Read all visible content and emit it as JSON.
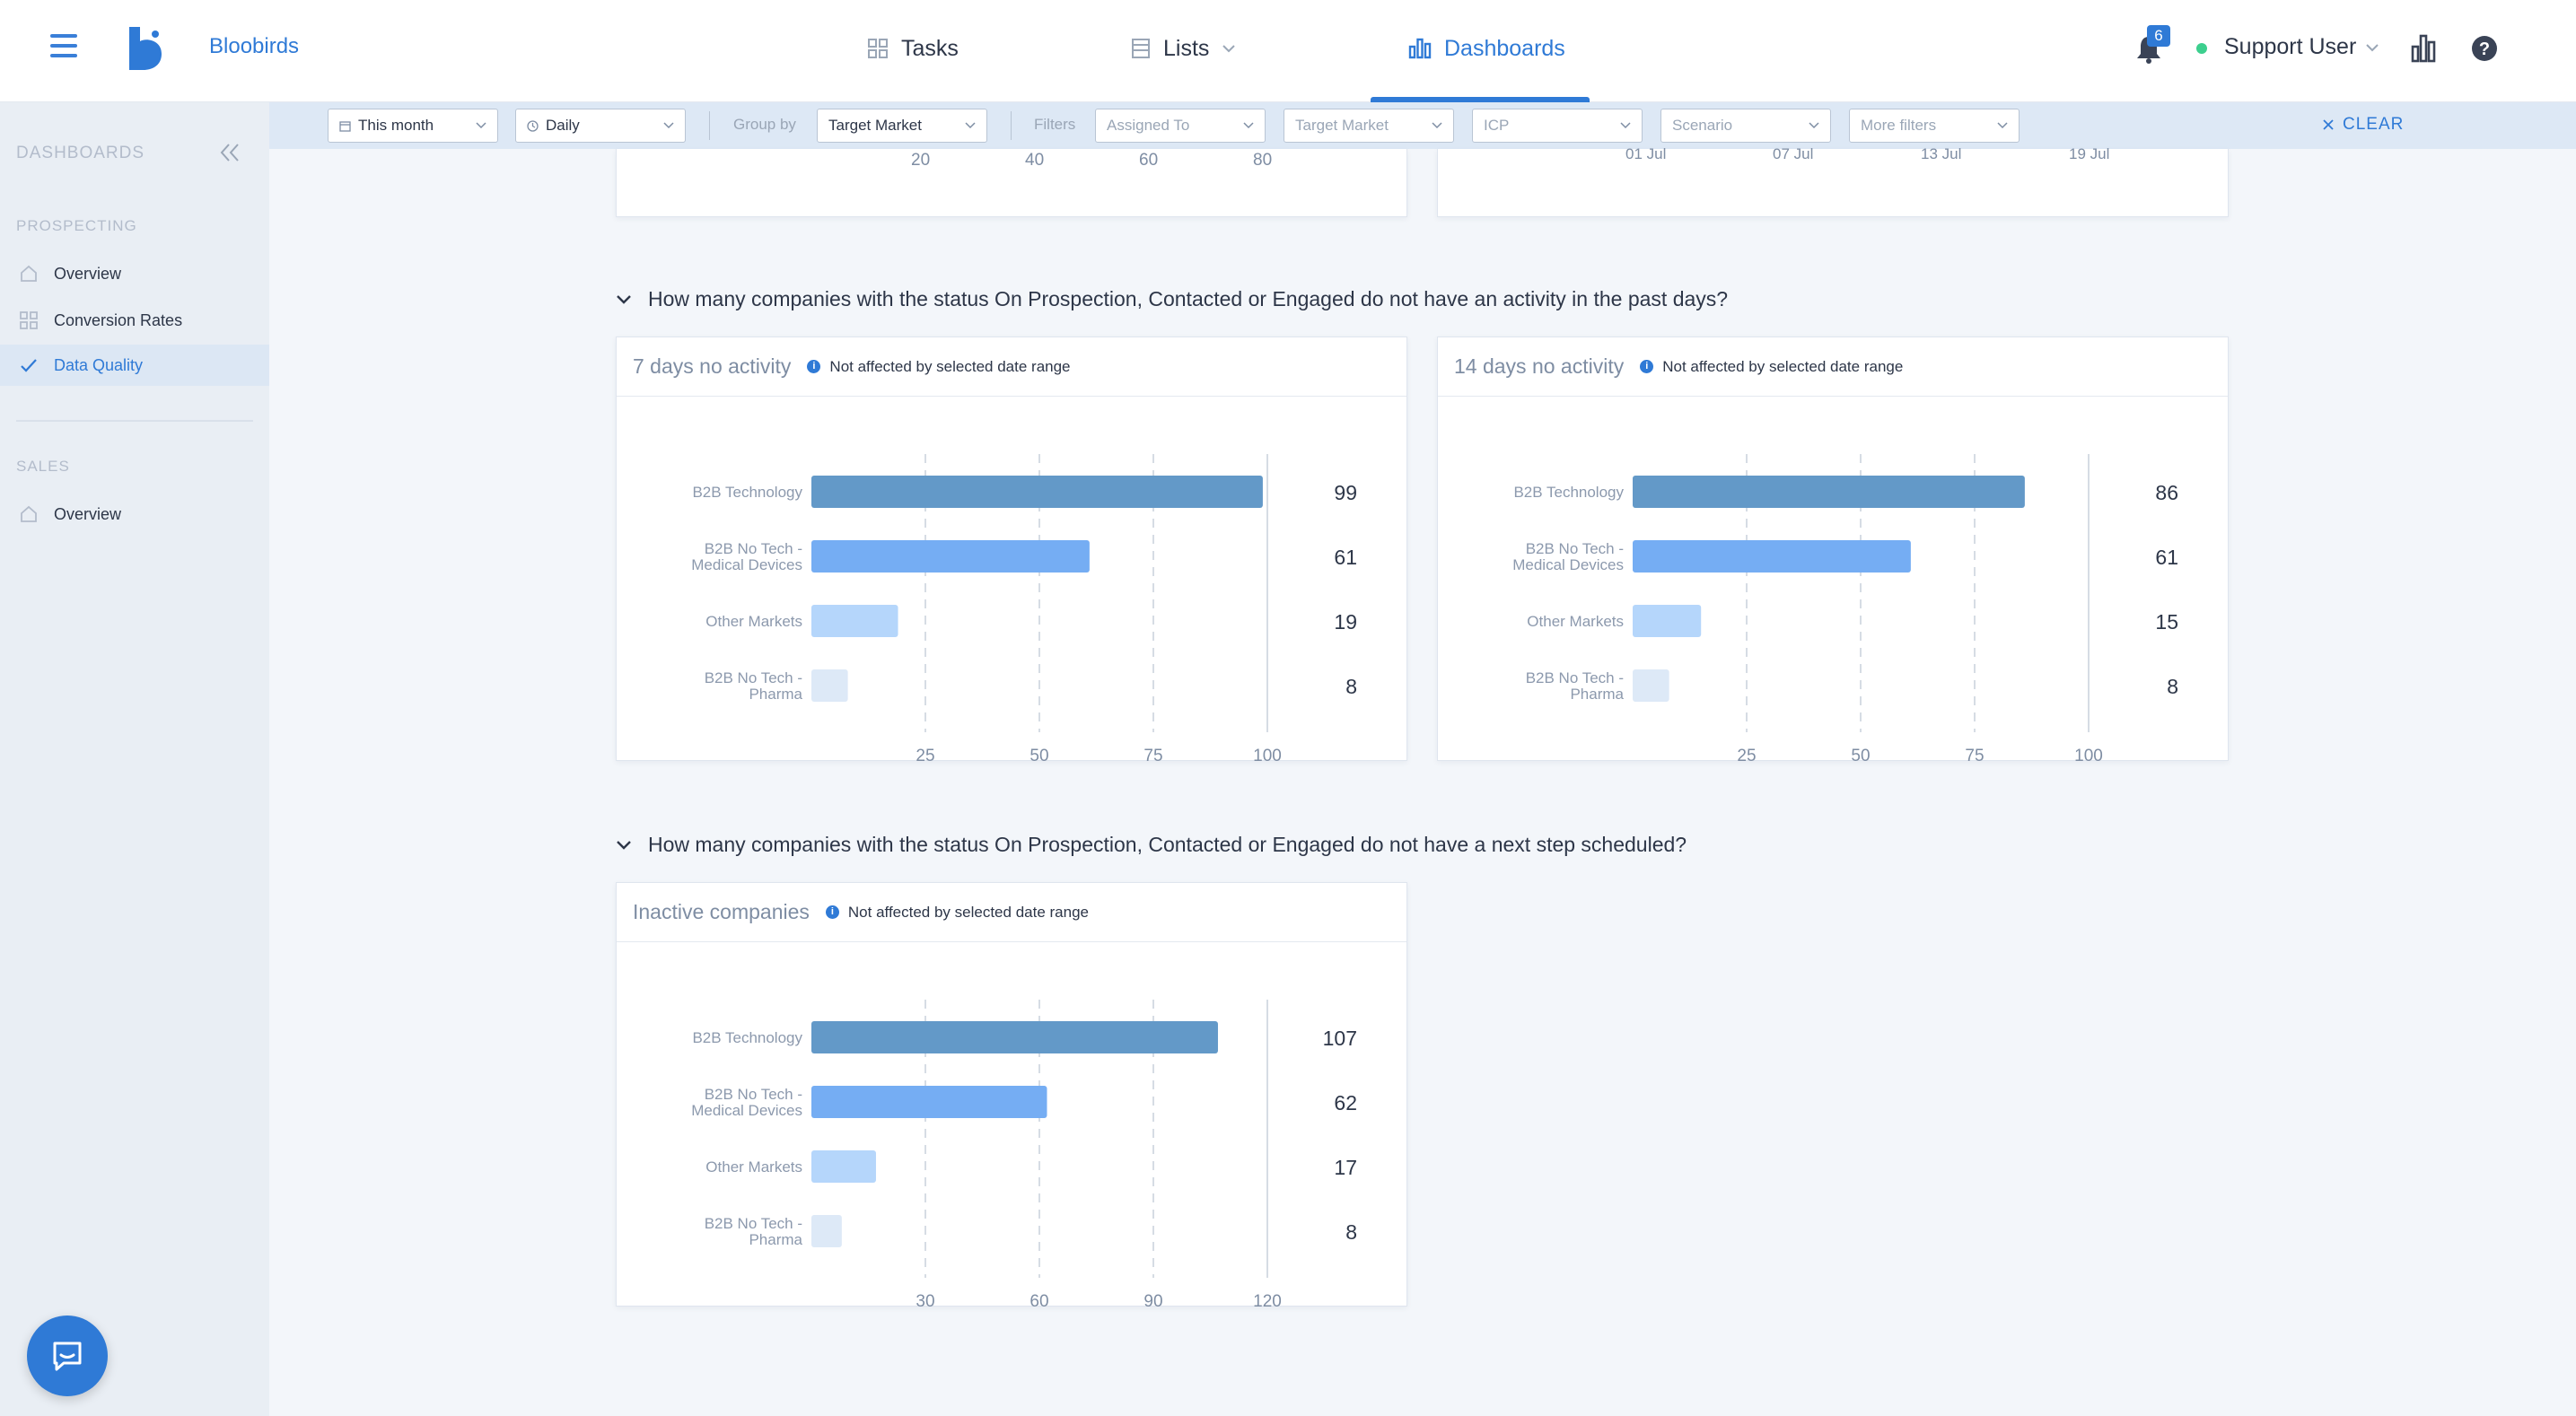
{
  "app": {
    "brand": "Bloobirds"
  },
  "nav": {
    "tasks": "Tasks",
    "lists": "Lists",
    "dashboards": "Dashboards"
  },
  "header": {
    "notifications": "6",
    "user": "Support User"
  },
  "sidebar": {
    "title": "DASHBOARDS",
    "prospecting_label": "PROSPECTING",
    "prospecting_items": [
      "Overview",
      "Conversion Rates",
      "Data Quality"
    ],
    "sales_label": "SALES",
    "sales_items": [
      "Overview"
    ]
  },
  "filters": {
    "date_range": "This month",
    "granularity": "Daily",
    "group_by_label": "Group by",
    "group_by": "Target Market",
    "filters_label": "Filters",
    "assigned_to": "Assigned To",
    "target_market": "Target Market",
    "icp": "ICP",
    "scenario": "Scenario",
    "more_filters": "More filters",
    "clear": "CLEAR"
  },
  "top_partial": {
    "left_ticks": [
      "20",
      "40",
      "60",
      "80"
    ],
    "right_ticks": [
      "01 Jul",
      "07 Jul",
      "13 Jul",
      "19 Jul"
    ]
  },
  "sections": {
    "q1": "How many companies with the status On Prospection, Contacted or Engaged do not have an activity in the past days?",
    "q2": "How many companies with the status On Prospection, Contacted or Engaged do not have a next step scheduled?"
  },
  "cards": {
    "c1": {
      "title": "7 days no activity",
      "note": "Not affected by selected date range"
    },
    "c2": {
      "title": "14 days no activity",
      "note": "Not affected by selected date range"
    },
    "c3": {
      "title": "Inactive companies",
      "note": "Not affected by selected date range"
    }
  },
  "chart_data": [
    {
      "type": "bar",
      "orientation": "horizontal",
      "title": "7 days no activity",
      "categories": [
        "B2B Technology",
        "B2B No Tech - Medical Devices",
        "Other Markets",
        "B2B No Tech - Pharma"
      ],
      "values": [
        99,
        61,
        19,
        8
      ],
      "xticks": [
        25,
        50,
        75,
        100
      ],
      "xlim": [
        0,
        100
      ],
      "colors": [
        "#6399c8",
        "#75adf3",
        "#b5d6fb",
        "#dde9f7"
      ],
      "grid": true
    },
    {
      "type": "bar",
      "orientation": "horizontal",
      "title": "14 days no activity",
      "categories": [
        "B2B Technology",
        "B2B No Tech - Medical Devices",
        "Other Markets",
        "B2B No Tech - Pharma"
      ],
      "values": [
        86,
        61,
        15,
        8
      ],
      "xticks": [
        25,
        50,
        75,
        100
      ],
      "xlim": [
        0,
        100
      ],
      "colors": [
        "#6399c8",
        "#75adf3",
        "#b5d6fb",
        "#dde9f7"
      ],
      "grid": true
    },
    {
      "type": "bar",
      "orientation": "horizontal",
      "title": "Inactive companies",
      "categories": [
        "B2B Technology",
        "B2B No Tech - Medical Devices",
        "Other Markets",
        "B2B No Tech - Pharma"
      ],
      "values": [
        107,
        62,
        17,
        8
      ],
      "xticks": [
        30,
        60,
        90,
        120
      ],
      "xlim": [
        0,
        120
      ],
      "colors": [
        "#6399c8",
        "#75adf3",
        "#b5d6fb",
        "#dde9f7"
      ],
      "grid": true
    }
  ]
}
